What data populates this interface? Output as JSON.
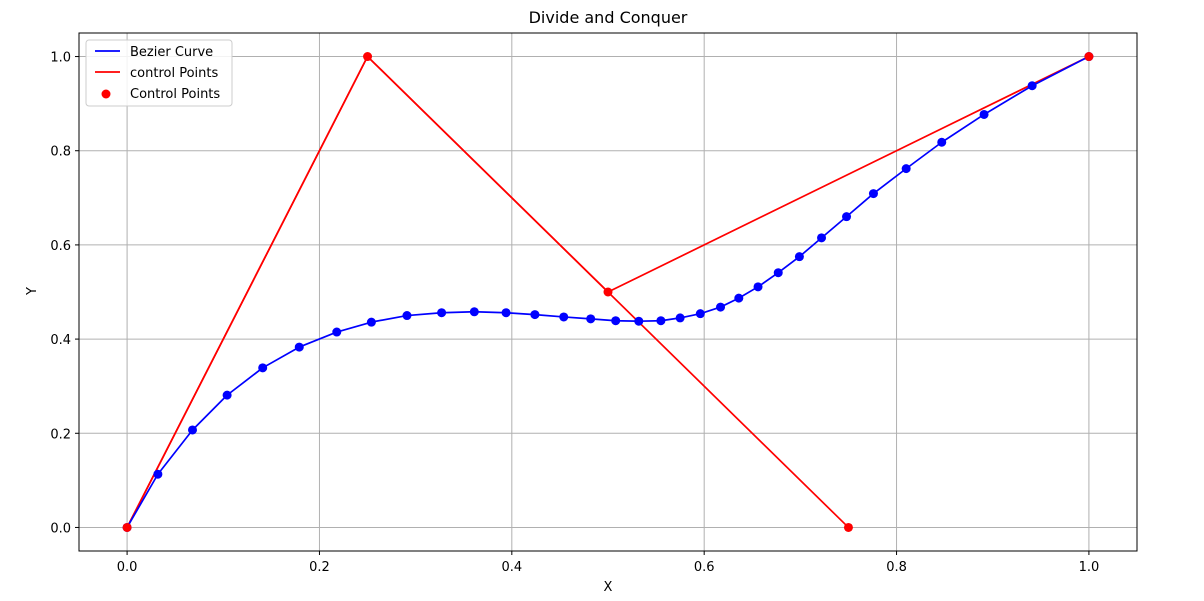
{
  "chart_data": {
    "type": "line",
    "title": "Divide and Conquer",
    "xlabel": "X",
    "ylabel": "Y",
    "xlim": [
      -0.05,
      1.05
    ],
    "ylim": [
      -0.05,
      1.05
    ],
    "xticks": [
      "0.0",
      "0.2",
      "0.4",
      "0.6",
      "0.8",
      "1.0"
    ],
    "yticks": [
      "0.0",
      "0.2",
      "0.4",
      "0.6",
      "0.8",
      "1.0"
    ],
    "grid": true,
    "legend_position": "top-left",
    "legend": [
      {
        "label": "Bezier Curve",
        "kind": "line",
        "color": "#0000ff"
      },
      {
        "label": "control Points",
        "kind": "line",
        "color": "#ff0000"
      },
      {
        "label": "Control Points",
        "kind": "marker",
        "color": "#ff0000"
      }
    ],
    "series": [
      {
        "name": "Bezier Curve",
        "color": "#0000ff",
        "markers": true,
        "x": [
          0.0,
          0.032,
          0.068,
          0.104,
          0.141,
          0.179,
          0.218,
          0.254,
          0.291,
          0.327,
          0.361,
          0.394,
          0.424,
          0.454,
          0.482,
          0.508,
          0.532,
          0.555,
          0.575,
          0.596,
          0.617,
          0.636,
          0.656,
          0.677,
          0.699,
          0.722,
          0.748,
          0.776,
          0.81,
          0.847,
          0.891,
          0.941,
          1.0
        ],
        "y": [
          0.0,
          0.113,
          0.207,
          0.281,
          0.339,
          0.383,
          0.415,
          0.436,
          0.45,
          0.456,
          0.458,
          0.456,
          0.452,
          0.447,
          0.443,
          0.439,
          0.438,
          0.439,
          0.445,
          0.454,
          0.468,
          0.487,
          0.511,
          0.541,
          0.575,
          0.615,
          0.66,
          0.709,
          0.762,
          0.818,
          0.877,
          0.938,
          1.0
        ]
      },
      {
        "name": "control Points",
        "color": "#ff0000",
        "markers": false,
        "x": [
          0.0,
          0.25,
          0.75
        ],
        "y": [
          0.0,
          1.0,
          0.0
        ]
      },
      {
        "name": "control Points",
        "color": "#ff0000",
        "markers": false,
        "x": [
          0.0,
          0.25,
          0.5,
          1.0
        ],
        "y": [
          0.0,
          1.0,
          0.5,
          1.0
        ]
      }
    ],
    "scatter": {
      "name": "Control Points",
      "color": "#ff0000",
      "x": [
        0.0,
        0.25,
        0.5,
        0.75,
        1.0
      ],
      "y": [
        0.0,
        1.0,
        0.5,
        0.0,
        1.0
      ]
    }
  }
}
